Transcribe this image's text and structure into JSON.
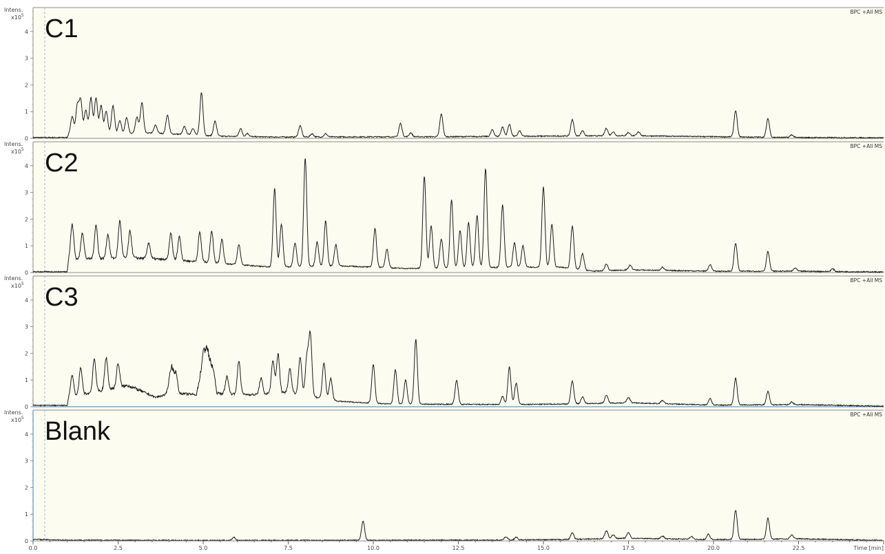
{
  "x_axis": {
    "label": "Time [min]",
    "ticks": [
      "0.0",
      "2.5",
      "5.0",
      "7.5",
      "10.0",
      "12.5",
      "15.0",
      "17.5",
      "20.0",
      "22.5"
    ],
    "range": [
      0,
      25
    ]
  },
  "colors": {
    "background": "#fdfcf1",
    "trace": "#1a1a1a",
    "frame": "#8a8a8a",
    "selected_axis": "#2f7fc1",
    "marker_line": "#9bb6c7"
  },
  "chart_data": [
    {
      "type": "line",
      "panel_label": "C1",
      "trace_title": "BPC +All MS",
      "y_axis": {
        "label": "Intens.",
        "multiplier": "x10",
        "exponent": "5",
        "ticks": [
          "0",
          "1",
          "2",
          "3",
          "4"
        ],
        "range": [
          0,
          4.8
        ]
      },
      "xlim": [
        0,
        25
      ],
      "baseline": [
        [
          0,
          0.03
        ],
        [
          1.0,
          0.03
        ],
        [
          1.05,
          0.15
        ],
        [
          3.5,
          0.2
        ],
        [
          5.5,
          0.08
        ],
        [
          7.0,
          0.05
        ],
        [
          12.0,
          0.06
        ],
        [
          17.5,
          0.1
        ],
        [
          20.0,
          0.06
        ],
        [
          22.5,
          0.03
        ],
        [
          25.0,
          0.02
        ]
      ],
      "peaks": [
        [
          1.15,
          0.65
        ],
        [
          1.3,
          1.05
        ],
        [
          1.4,
          1.25
        ],
        [
          1.55,
          0.9
        ],
        [
          1.7,
          1.35
        ],
        [
          1.85,
          1.35
        ],
        [
          2.0,
          1.05
        ],
        [
          2.15,
          0.85
        ],
        [
          2.35,
          1.05
        ],
        [
          2.55,
          0.5
        ],
        [
          2.75,
          0.6
        ],
        [
          3.05,
          0.6
        ],
        [
          3.2,
          1.15
        ],
        [
          3.6,
          0.3
        ],
        [
          3.95,
          0.7
        ],
        [
          4.45,
          0.3
        ],
        [
          4.7,
          0.25
        ],
        [
          4.95,
          1.6
        ],
        [
          5.35,
          0.55
        ],
        [
          6.1,
          0.3
        ],
        [
          6.3,
          0.12
        ],
        [
          7.85,
          0.42
        ],
        [
          8.2,
          0.12
        ],
        [
          8.6,
          0.12
        ],
        [
          10.8,
          0.5
        ],
        [
          11.1,
          0.15
        ],
        [
          12.0,
          0.85
        ],
        [
          13.5,
          0.25
        ],
        [
          13.8,
          0.35
        ],
        [
          14.0,
          0.45
        ],
        [
          14.3,
          0.2
        ],
        [
          15.85,
          0.62
        ],
        [
          16.15,
          0.2
        ],
        [
          16.85,
          0.28
        ],
        [
          17.05,
          0.15
        ],
        [
          17.5,
          0.12
        ],
        [
          17.8,
          0.15
        ],
        [
          20.65,
          0.98
        ],
        [
          21.6,
          0.7
        ],
        [
          22.3,
          0.1
        ]
      ]
    },
    {
      "type": "line",
      "panel_label": "C2",
      "trace_title": "BPC +All MS",
      "y_axis": {
        "label": "Intens.",
        "multiplier": "x10",
        "exponent": "5",
        "ticks": [
          "0",
          "1",
          "2",
          "3",
          "4"
        ],
        "range": [
          0,
          4.8
        ]
      },
      "xlim": [
        0,
        25
      ],
      "baseline": [
        [
          0,
          0.03
        ],
        [
          1.0,
          0.03
        ],
        [
          1.05,
          0.5
        ],
        [
          3.0,
          0.55
        ],
        [
          5.0,
          0.4
        ],
        [
          7.0,
          0.2
        ],
        [
          9.0,
          0.25
        ],
        [
          11.0,
          0.15
        ],
        [
          14.0,
          0.2
        ],
        [
          15.5,
          0.2
        ],
        [
          16.5,
          0.05
        ],
        [
          17.5,
          0.1
        ],
        [
          20.0,
          0.05
        ],
        [
          22.5,
          0.05
        ],
        [
          25.0,
          0.02
        ]
      ],
      "peaks": [
        [
          1.15,
          1.3
        ],
        [
          1.45,
          1.0
        ],
        [
          1.85,
          1.25
        ],
        [
          2.2,
          0.9
        ],
        [
          2.55,
          1.4
        ],
        [
          2.85,
          1.0
        ],
        [
          3.4,
          0.6
        ],
        [
          4.05,
          1.0
        ],
        [
          4.3,
          0.9
        ],
        [
          4.9,
          1.1
        ],
        [
          5.25,
          1.2
        ],
        [
          5.55,
          0.9
        ],
        [
          6.05,
          0.75
        ],
        [
          7.1,
          2.95
        ],
        [
          7.3,
          1.6
        ],
        [
          7.7,
          0.9
        ],
        [
          8.0,
          4.05
        ],
        [
          8.35,
          0.9
        ],
        [
          8.6,
          1.7
        ],
        [
          8.9,
          0.8
        ],
        [
          10.05,
          1.45
        ],
        [
          10.4,
          0.7
        ],
        [
          11.5,
          3.45
        ],
        [
          11.7,
          1.6
        ],
        [
          12.0,
          1.1
        ],
        [
          12.3,
          2.55
        ],
        [
          12.55,
          1.4
        ],
        [
          12.8,
          1.7
        ],
        [
          13.05,
          1.95
        ],
        [
          13.3,
          3.7
        ],
        [
          13.8,
          2.35
        ],
        [
          14.15,
          0.9
        ],
        [
          14.4,
          0.8
        ],
        [
          15.0,
          3.0
        ],
        [
          15.25,
          1.6
        ],
        [
          15.85,
          1.6
        ],
        [
          16.15,
          0.6
        ],
        [
          16.85,
          0.25
        ],
        [
          17.55,
          0.18
        ],
        [
          18.5,
          0.12
        ],
        [
          19.9,
          0.25
        ],
        [
          20.65,
          1.05
        ],
        [
          21.6,
          0.75
        ],
        [
          22.4,
          0.12
        ],
        [
          23.5,
          0.1
        ]
      ]
    },
    {
      "type": "line",
      "panel_label": "C3",
      "trace_title": "BPC +All MS",
      "y_axis": {
        "label": "Intens.",
        "multiplier": "x10",
        "exponent": "5",
        "ticks": [
          "0",
          "1",
          "2",
          "3",
          "4"
        ],
        "range": [
          0,
          4.8
        ]
      },
      "xlim": [
        0,
        25
      ],
      "baseline": [
        [
          0,
          0.05
        ],
        [
          1.0,
          0.05
        ],
        [
          1.05,
          0.35
        ],
        [
          2.0,
          0.6
        ],
        [
          2.8,
          0.8
        ],
        [
          3.6,
          0.35
        ],
        [
          3.9,
          0.45
        ],
        [
          4.1,
          1.25
        ],
        [
          4.3,
          0.5
        ],
        [
          4.8,
          0.45
        ],
        [
          5.1,
          2.3
        ],
        [
          5.4,
          0.5
        ],
        [
          6.5,
          0.45
        ],
        [
          7.5,
          0.55
        ],
        [
          9.0,
          0.2
        ],
        [
          10.5,
          0.1
        ],
        [
          14.0,
          0.08
        ],
        [
          15.5,
          0.1
        ],
        [
          17.5,
          0.15
        ],
        [
          20.0,
          0.06
        ],
        [
          22.5,
          0.08
        ],
        [
          25.0,
          0.02
        ]
      ],
      "peaks": [
        [
          1.15,
          0.8
        ],
        [
          1.4,
          1.0
        ],
        [
          1.8,
          1.25
        ],
        [
          2.15,
          1.2
        ],
        [
          2.5,
          0.9
        ],
        [
          4.05,
          0.4
        ],
        [
          4.2,
          0.4
        ],
        [
          5.0,
          0.3
        ],
        [
          5.3,
          0.3
        ],
        [
          5.7,
          0.65
        ],
        [
          6.05,
          1.25
        ],
        [
          6.7,
          0.6
        ],
        [
          7.05,
          1.2
        ],
        [
          7.2,
          1.45
        ],
        [
          7.55,
          0.9
        ],
        [
          7.85,
          1.4
        ],
        [
          8.05,
          1.45
        ],
        [
          8.15,
          2.3
        ],
        [
          8.55,
          1.35
        ],
        [
          8.75,
          0.8
        ],
        [
          10.0,
          1.45
        ],
        [
          10.65,
          1.3
        ],
        [
          10.95,
          0.9
        ],
        [
          11.25,
          2.45
        ],
        [
          12.45,
          0.9
        ],
        [
          13.8,
          0.3
        ],
        [
          14.0,
          1.4
        ],
        [
          14.2,
          0.8
        ],
        [
          15.85,
          0.85
        ],
        [
          16.15,
          0.25
        ],
        [
          16.85,
          0.3
        ],
        [
          17.5,
          0.2
        ],
        [
          18.5,
          0.12
        ],
        [
          19.9,
          0.25
        ],
        [
          20.65,
          1.0
        ],
        [
          21.6,
          0.5
        ],
        [
          22.3,
          0.1
        ]
      ]
    },
    {
      "type": "line",
      "panel_label": "Blank",
      "trace_title": "BPC +All MS",
      "y_axis": {
        "label": "Intens.",
        "multiplier": "x10",
        "exponent": "5",
        "ticks": [
          "0",
          "1",
          "2",
          "3",
          "4"
        ],
        "range": [
          0,
          4.8
        ]
      },
      "xlim": [
        0,
        25
      ],
      "baseline": [
        [
          0,
          0.06
        ],
        [
          1.0,
          0.03
        ],
        [
          5.0,
          0.02
        ],
        [
          13.5,
          0.03
        ],
        [
          15.5,
          0.05
        ],
        [
          17.5,
          0.1
        ],
        [
          20.0,
          0.05
        ],
        [
          22.5,
          0.08
        ],
        [
          25.0,
          0.02
        ]
      ],
      "peaks": [
        [
          5.9,
          0.12
        ],
        [
          9.7,
          0.72
        ],
        [
          13.9,
          0.12
        ],
        [
          14.2,
          0.1
        ],
        [
          15.85,
          0.25
        ],
        [
          16.85,
          0.3
        ],
        [
          17.05,
          0.15
        ],
        [
          17.5,
          0.22
        ],
        [
          18.5,
          0.1
        ],
        [
          19.35,
          0.1
        ],
        [
          19.85,
          0.2
        ],
        [
          20.65,
          1.1
        ],
        [
          21.6,
          0.78
        ],
        [
          22.3,
          0.15
        ]
      ]
    }
  ]
}
